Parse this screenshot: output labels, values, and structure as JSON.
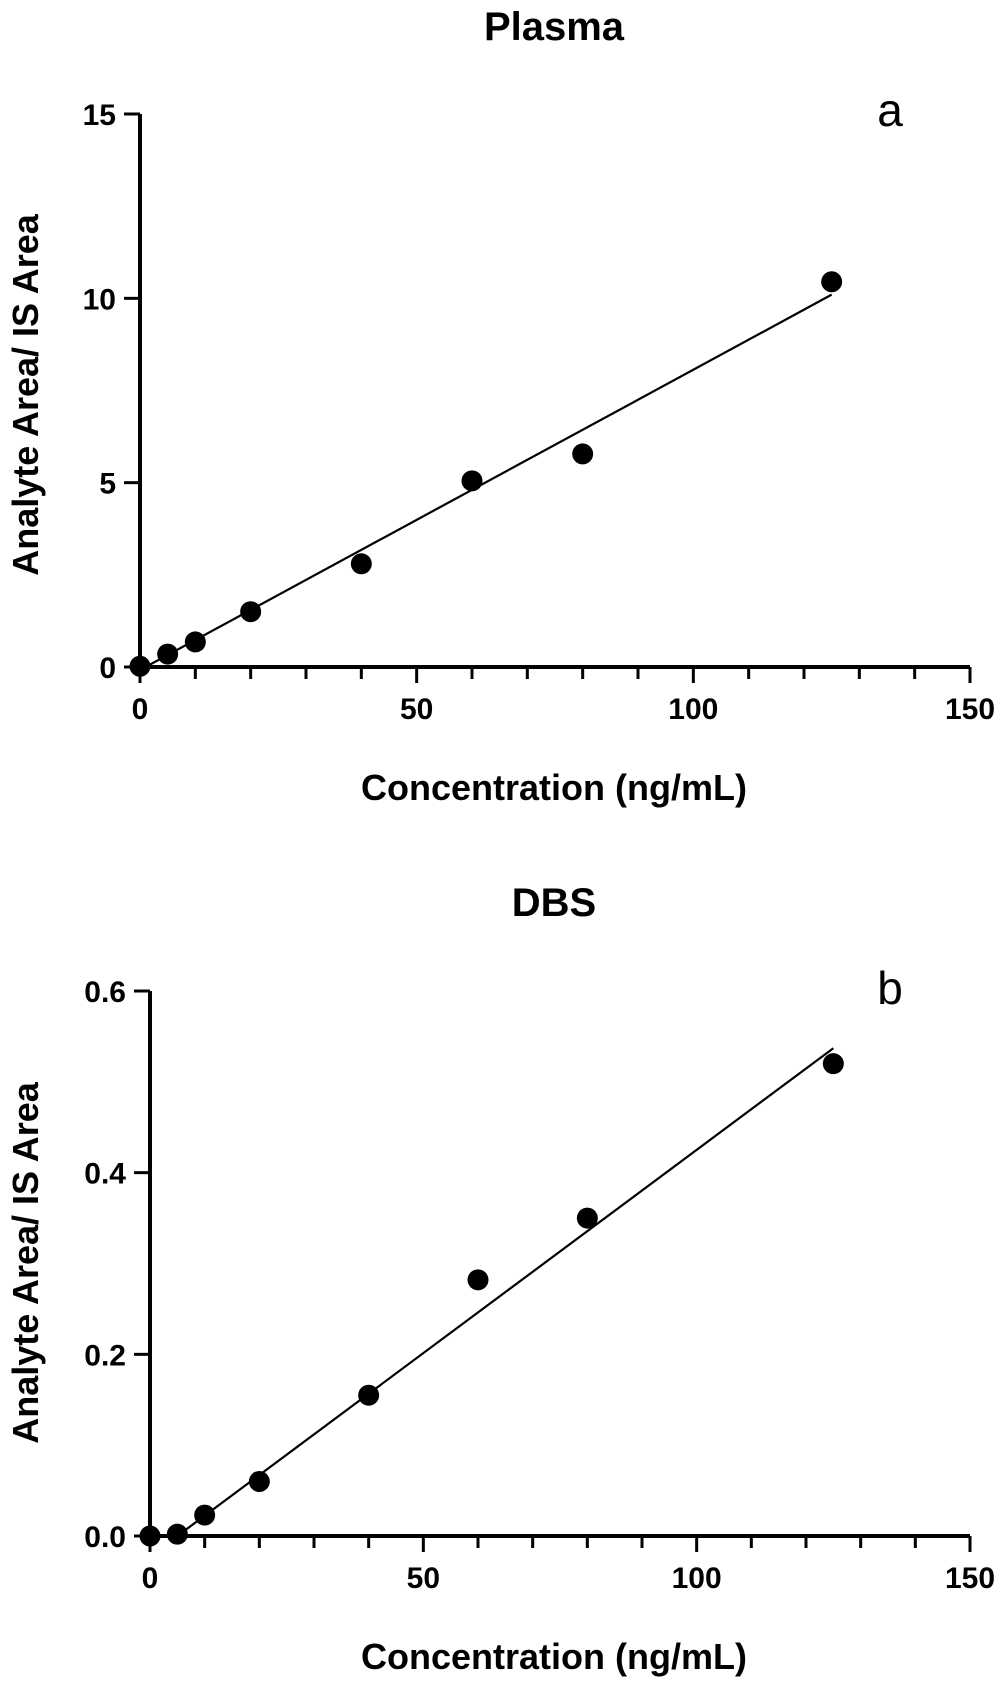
{
  "chart_data": [
    {
      "type": "scatter",
      "title": "Plasma",
      "panel_label": "a",
      "xlabel": "Concentration (ng/mL)",
      "ylabel": "Analyte Area/ IS Area",
      "xlim": [
        0,
        150
      ],
      "ylim": [
        0,
        15
      ],
      "xticks": [
        "0",
        "50",
        "100",
        "150"
      ],
      "yticks": [
        "0",
        "5",
        "10",
        "15"
      ],
      "x": [
        0,
        5,
        10,
        20,
        40,
        60,
        80,
        125
      ],
      "y": [
        0.02,
        0.35,
        0.68,
        1.5,
        2.8,
        5.05,
        5.78,
        10.45
      ],
      "fit": {
        "x": [
          1,
          125
        ],
        "y": [
          0.0,
          10.1
        ]
      },
      "grid": false,
      "legend": "none"
    },
    {
      "type": "scatter",
      "title": "DBS",
      "panel_label": "b",
      "xlabel": "Concentration (ng/mL)",
      "ylabel": "Analyte Area/ IS Area",
      "xlim": [
        0,
        150
      ],
      "ylim": [
        0,
        0.6
      ],
      "xticks": [
        "0",
        "50",
        "100",
        "150"
      ],
      "yticks": [
        "0.0",
        "0.2",
        "0.4",
        "0.6"
      ],
      "x": [
        0,
        5,
        10,
        20,
        40,
        60,
        80,
        125
      ],
      "y": [
        0.0,
        0.002,
        0.023,
        0.06,
        0.155,
        0.282,
        0.35,
        0.52
      ],
      "fit": {
        "x": [
          5,
          125
        ],
        "y": [
          0.0,
          0.537
        ]
      },
      "grid": false,
      "legend": "none"
    }
  ]
}
